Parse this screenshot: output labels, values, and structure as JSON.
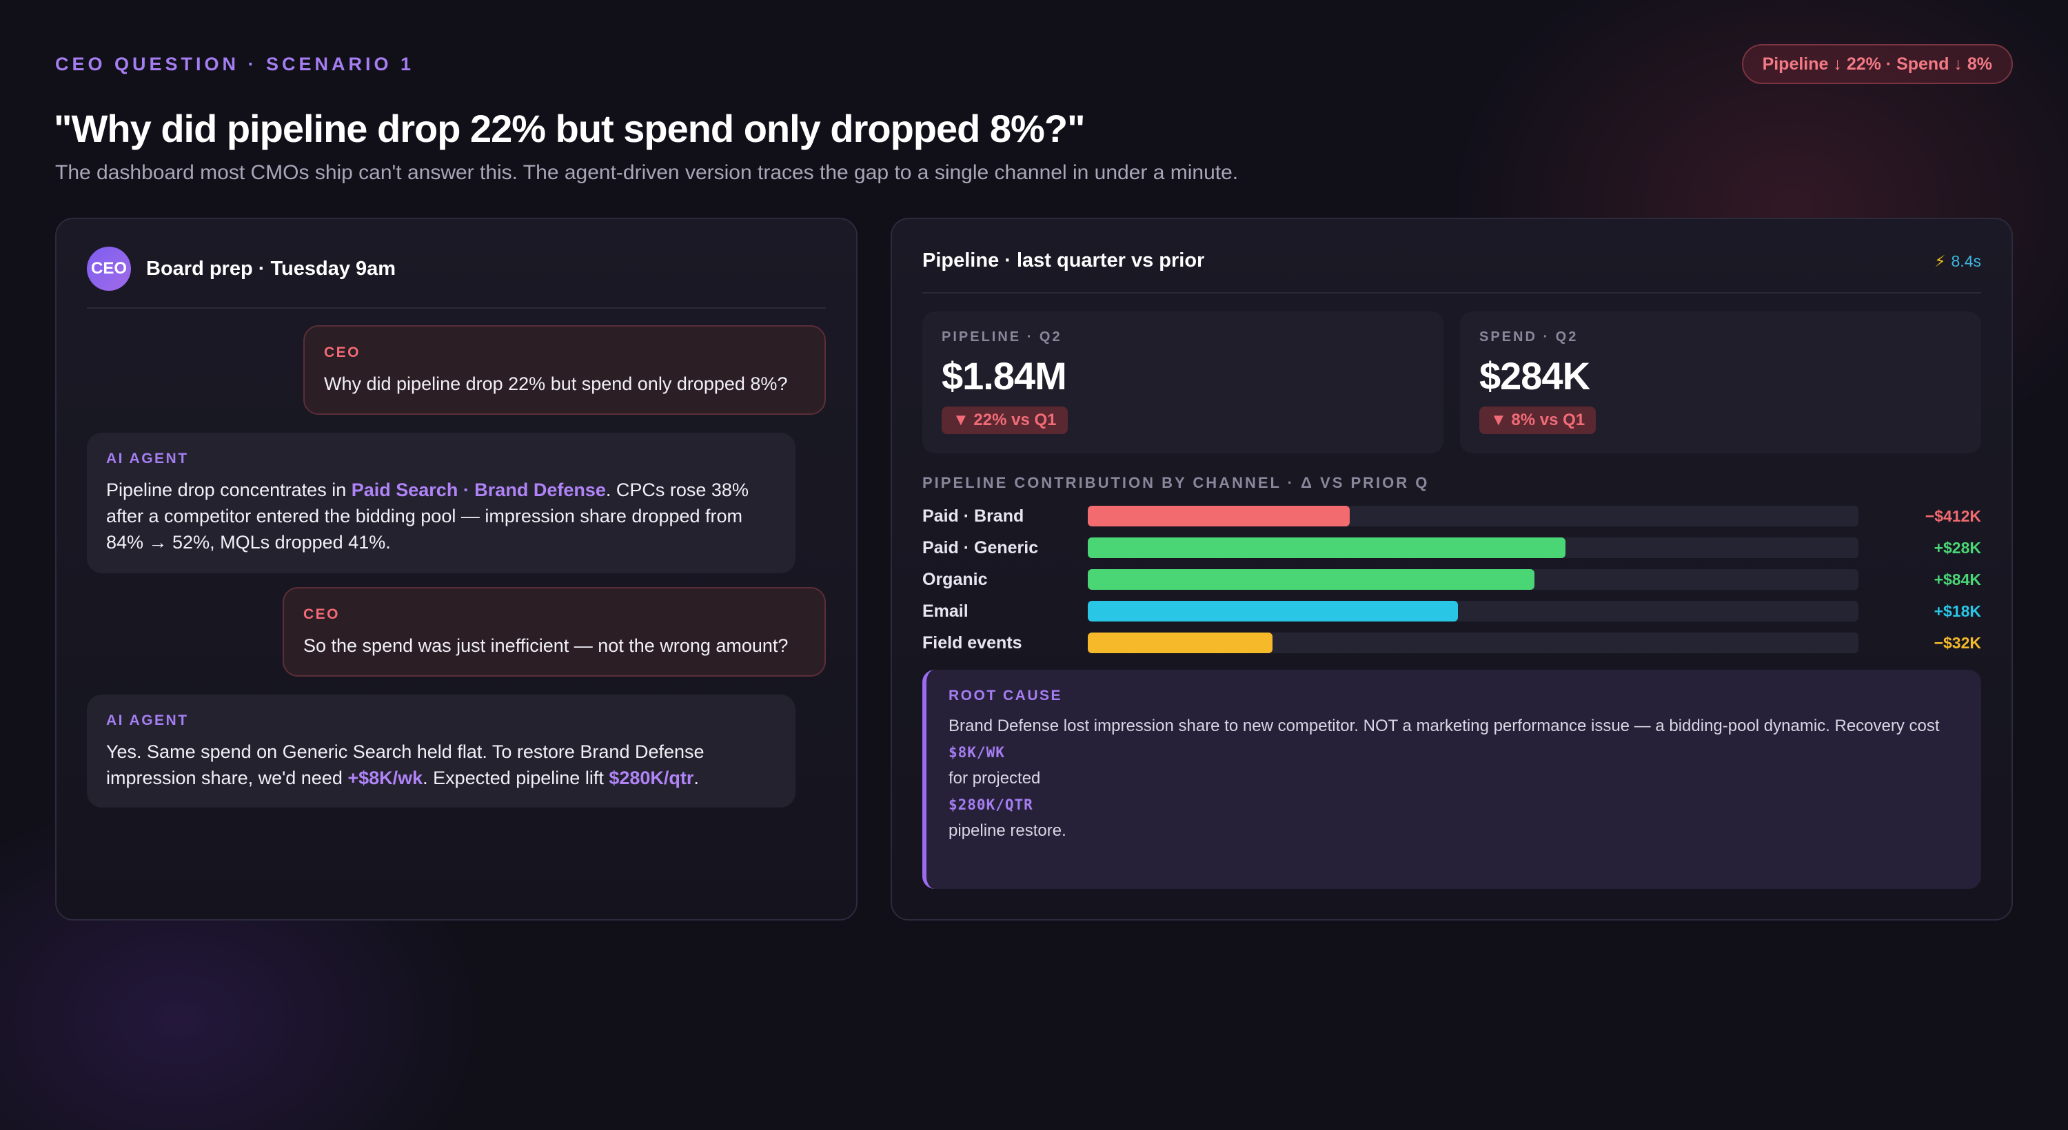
{
  "header": {
    "eyebrow": "CEO QUESTION · SCENARIO 1",
    "pill": "Pipeline ↓ 22% · Spend ↓ 8%",
    "headline": "\"Why did pipeline drop 22% but spend only dropped 8%?\"",
    "subhead": "The dashboard most CMOs ship can't answer this. The agent-driven version traces the gap to a single channel in under a minute."
  },
  "chat": {
    "avatar": "CEO",
    "title": "Board prep · Tuesday 9am",
    "messages": [
      {
        "role": "CEO",
        "text": "Why did pipeline drop 22% but spend only dropped 8%?"
      },
      {
        "role": "AI AGENT",
        "pre": "Pipeline drop concentrates in ",
        "highlight": "Paid Search · Brand Defense",
        "post": ". CPCs rose 38% after a competitor entered the bidding pool — impression share dropped from 84% → 52%, MQLs dropped 41%."
      },
      {
        "role": "CEO",
        "text": "So the spend was just inefficient — not the wrong amount?"
      },
      {
        "role": "AI AGENT",
        "pre": "Yes. Same spend on Generic Search held flat. To restore Brand Defense impression share, we'd need ",
        "highlight": "+$8K/wk",
        "mid": ". Expected pipeline lift ",
        "highlight2": "$280K/qtr",
        "post": "."
      }
    ]
  },
  "panel": {
    "title": "Pipeline · last quarter vs prior",
    "bolt_icon": "⚡",
    "time": "8.4s",
    "kpis": [
      {
        "label": "PIPELINE · Q2",
        "value": "$1.84M",
        "delta": "▼ 22% vs Q1"
      },
      {
        "label": "SPEND · Q2",
        "value": "$284K",
        "delta": "▼ 8% vs Q1"
      }
    ],
    "section_label": "PIPELINE CONTRIBUTION BY CHANNEL · Δ VS PRIOR Q"
  },
  "chart_data": {
    "type": "bar",
    "categories": [
      "Paid · Brand",
      "Paid · Generic",
      "Organic",
      "Email",
      "Field events"
    ],
    "value_labels": [
      "−$412K",
      "+$28K",
      "+$84K",
      "+$18K",
      "−$32K"
    ],
    "bar_fill_fraction": [
      0.34,
      0.62,
      0.58,
      0.48,
      0.24
    ],
    "colors": [
      "#f26b6f",
      "#4ad675",
      "#4ad675",
      "#2ac6e6",
      "#f5b92a"
    ],
    "value_colors": [
      "#f26b6f",
      "#4ad675",
      "#4ad675",
      "#2ac6e6",
      "#f5b92a"
    ]
  },
  "root_cause": {
    "label": "ROOT CAUSE",
    "text1": "Brand Defense lost impression share to new competitor. NOT a marketing performance issue — a bidding-pool dynamic. Recovery cost",
    "tag1": "$8K/WK",
    "text2": "for projected",
    "tag2": "$280K/QTR",
    "text3": "pipeline restore."
  }
}
